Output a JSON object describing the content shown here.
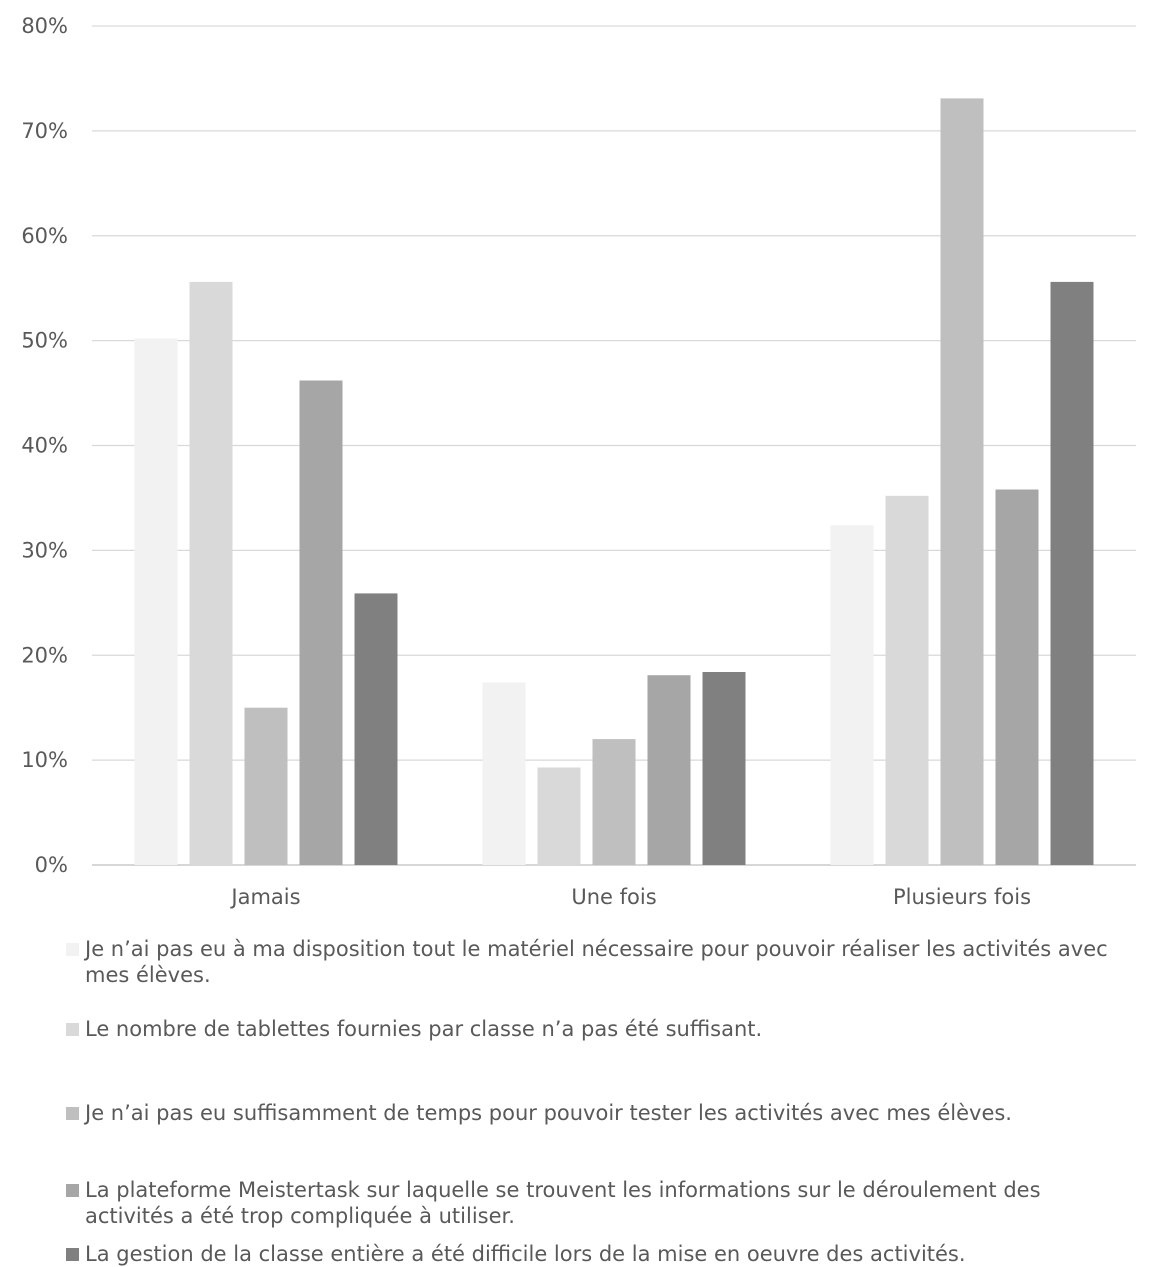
{
  "chart_data": {
    "type": "bar",
    "categories": [
      "Jamais",
      "Une fois",
      "Plusieurs fois"
    ],
    "y_ticks": [
      "0%",
      "10%",
      "20%",
      "30%",
      "40%",
      "50%",
      "60%",
      "70%",
      "80%"
    ],
    "ylim": [
      0,
      80
    ],
    "y_unit": "%",
    "grid": true,
    "legend_position": "bottom",
    "series": [
      {
        "name": "Je n’ai pas eu à ma disposition tout le matériel nécessaire pour pouvoir réaliser les activités avec mes élèves.",
        "color": "#f2f2f2",
        "values": [
          50.2,
          17.4,
          32.4
        ]
      },
      {
        "name": "Le nombre de tablettes fournies par classe n’a pas été suffisant.",
        "color": "#d9d9d9",
        "values": [
          55.6,
          9.3,
          35.2
        ]
      },
      {
        "name": "Je n’ai pas eu suffisamment de temps pour pouvoir tester les activités avec mes élèves.",
        "color": "#bfbfbf",
        "values": [
          15.0,
          12.0,
          73.1
        ]
      },
      {
        "name": "La plateforme Meistertask sur laquelle se trouvent les informations sur le déroulement des activités a été trop compliquée à utiliser.",
        "color": "#a6a6a6",
        "values": [
          46.2,
          18.1,
          35.8
        ]
      },
      {
        "name": "La gestion de la classe entière a été difficile lors de la mise en oeuvre des activités.",
        "color": "#808080",
        "values": [
          25.9,
          18.4,
          55.6
        ]
      }
    ]
  }
}
